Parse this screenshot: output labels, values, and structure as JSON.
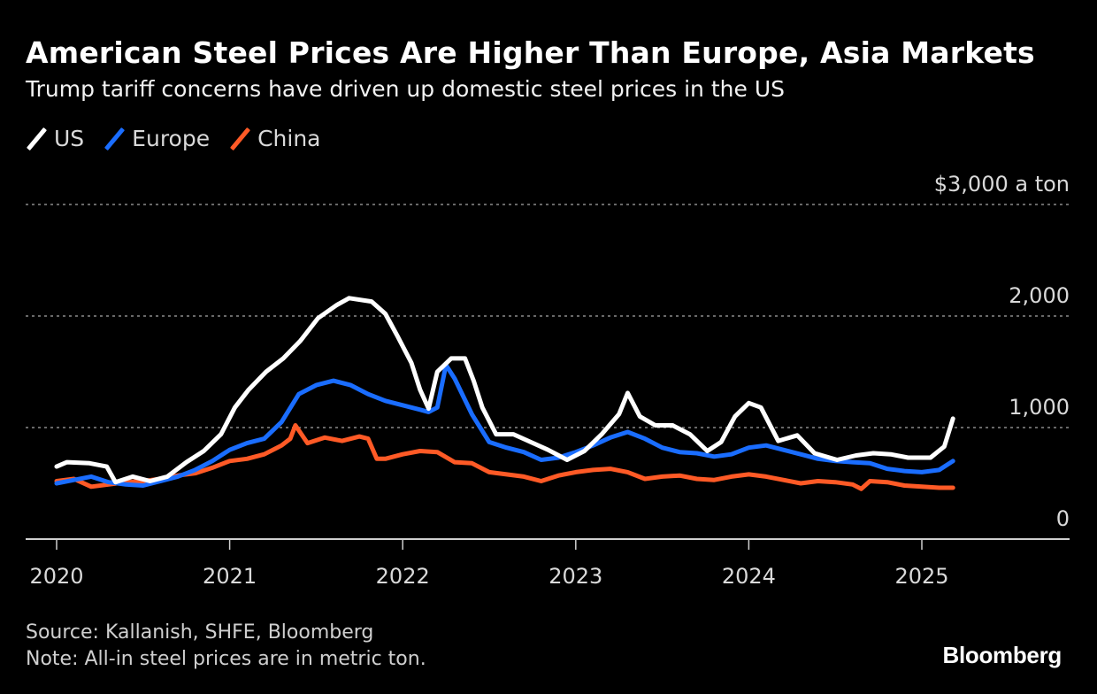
{
  "header": {
    "title": "American Steel Prices Are Higher Than Europe, Asia Markets",
    "subtitle": "Trump tariff concerns have driven up domestic steel prices in the US"
  },
  "legend": [
    {
      "label": "US",
      "color": "#ffffff"
    },
    {
      "label": "Europe",
      "color": "#1a6dff"
    },
    {
      "label": "China",
      "color": "#ff5a26"
    }
  ],
  "footer": {
    "source": "Source: Kallanish, SHFE, Bloomberg",
    "note": "Note: All-in steel prices are in metric ton.",
    "brand": "Bloomberg"
  },
  "chart_data": {
    "type": "line",
    "title": "American Steel Prices Are Higher Than Europe, Asia Markets",
    "subtitle": "Trump tariff concerns have driven up domestic steel prices in the US",
    "xlabel": "",
    "ylabel": "$ a ton",
    "unit_label": "$3,000 a ton",
    "xlim": [
      2019.83,
      2025.85
    ],
    "ylim": [
      0,
      3000
    ],
    "x_ticks": [
      2020,
      2021,
      2022,
      2023,
      2024,
      2025
    ],
    "x_tick_labels": [
      "2020",
      "2021",
      "2022",
      "2023",
      "2024",
      "2025"
    ],
    "y_ticks": [
      0,
      1000,
      2000,
      3000
    ],
    "y_tick_labels": [
      "0",
      "1,000",
      "2,000",
      "$3,000 a ton"
    ],
    "grid": true,
    "legend_position": "top-left",
    "series": [
      {
        "name": "US",
        "color": "#ffffff",
        "x": [
          2020.0,
          2020.06,
          2020.19,
          2020.29,
          2020.34,
          2020.44,
          2020.54,
          2020.64,
          2020.75,
          2020.85,
          2020.95,
          2021.03,
          2021.11,
          2021.21,
          2021.31,
          2021.41,
          2021.51,
          2021.62,
          2021.69,
          2021.82,
          2021.9,
          2021.97,
          2022.05,
          2022.1,
          2022.15,
          2022.2,
          2022.28,
          2022.36,
          2022.41,
          2022.46,
          2022.54,
          2022.64,
          2022.74,
          2022.84,
          2022.95,
          2023.05,
          2023.15,
          2023.25,
          2023.3,
          2023.37,
          2023.46,
          2023.56,
          2023.66,
          2023.76,
          2023.84,
          2023.92,
          2024.0,
          2024.07,
          2024.17,
          2024.28,
          2024.38,
          2024.51,
          2024.62,
          2024.72,
          2024.82,
          2024.92,
          2025.05,
          2025.13,
          2025.18
        ],
        "values": [
          650,
          690,
          680,
          650,
          510,
          560,
          520,
          560,
          690,
          790,
          940,
          1180,
          1340,
          1500,
          1620,
          1780,
          1980,
          2100,
          2160,
          2130,
          2020,
          1820,
          1580,
          1340,
          1170,
          1500,
          1620,
          1620,
          1420,
          1180,
          940,
          940,
          870,
          800,
          710,
          790,
          940,
          1120,
          1310,
          1100,
          1020,
          1020,
          940,
          790,
          870,
          1100,
          1220,
          1180,
          880,
          930,
          770,
          710,
          750,
          770,
          760,
          730,
          730,
          830,
          1080
        ]
      },
      {
        "name": "Europe",
        "color": "#1a6dff",
        "x": [
          2020.0,
          2020.1,
          2020.2,
          2020.3,
          2020.4,
          2020.5,
          2020.6,
          2020.7,
          2020.8,
          2020.9,
          2021.0,
          2021.1,
          2021.2,
          2021.3,
          2021.4,
          2021.5,
          2021.6,
          2021.7,
          2021.8,
          2021.9,
          2022.0,
          2022.1,
          2022.15,
          2022.2,
          2022.25,
          2022.3,
          2022.4,
          2022.5,
          2022.6,
          2022.7,
          2022.8,
          2022.9,
          2023.0,
          2023.1,
          2023.2,
          2023.3,
          2023.4,
          2023.5,
          2023.6,
          2023.7,
          2023.8,
          2023.9,
          2024.0,
          2024.1,
          2024.2,
          2024.3,
          2024.4,
          2024.5,
          2024.6,
          2024.7,
          2024.8,
          2024.9,
          2025.0,
          2025.1,
          2025.18
        ],
        "values": [
          500,
          530,
          560,
          510,
          490,
          480,
          520,
          560,
          620,
          700,
          800,
          860,
          900,
          1050,
          1300,
          1380,
          1420,
          1380,
          1300,
          1240,
          1200,
          1160,
          1140,
          1180,
          1560,
          1440,
          1120,
          870,
          820,
          780,
          710,
          730,
          780,
          840,
          910,
          960,
          900,
          820,
          780,
          770,
          740,
          760,
          820,
          840,
          800,
          760,
          720,
          700,
          690,
          680,
          630,
          610,
          600,
          620,
          700
        ]
      },
      {
        "name": "China",
        "color": "#ff5a26",
        "x": [
          2020.0,
          2020.1,
          2020.2,
          2020.3,
          2020.4,
          2020.5,
          2020.6,
          2020.7,
          2020.8,
          2020.9,
          2021.0,
          2021.1,
          2021.2,
          2021.3,
          2021.35,
          2021.38,
          2021.45,
          2021.55,
          2021.65,
          2021.75,
          2021.8,
          2021.85,
          2021.9,
          2022.0,
          2022.1,
          2022.2,
          2022.3,
          2022.4,
          2022.5,
          2022.6,
          2022.7,
          2022.8,
          2022.9,
          2023.0,
          2023.1,
          2023.2,
          2023.3,
          2023.4,
          2023.5,
          2023.6,
          2023.7,
          2023.8,
          2023.9,
          2024.0,
          2024.1,
          2024.2,
          2024.3,
          2024.4,
          2024.5,
          2024.6,
          2024.65,
          2024.7,
          2024.8,
          2024.9,
          2025.0,
          2025.1,
          2025.18
        ],
        "values": [
          520,
          540,
          470,
          490,
          510,
          520,
          540,
          570,
          590,
          640,
          700,
          720,
          760,
          840,
          900,
          1020,
          860,
          910,
          880,
          920,
          900,
          720,
          720,
          760,
          790,
          780,
          690,
          680,
          600,
          580,
          560,
          520,
          570,
          600,
          620,
          630,
          600,
          540,
          560,
          570,
          540,
          530,
          560,
          580,
          560,
          530,
          500,
          520,
          510,
          490,
          450,
          520,
          510,
          480,
          470,
          460,
          460
        ]
      }
    ]
  }
}
